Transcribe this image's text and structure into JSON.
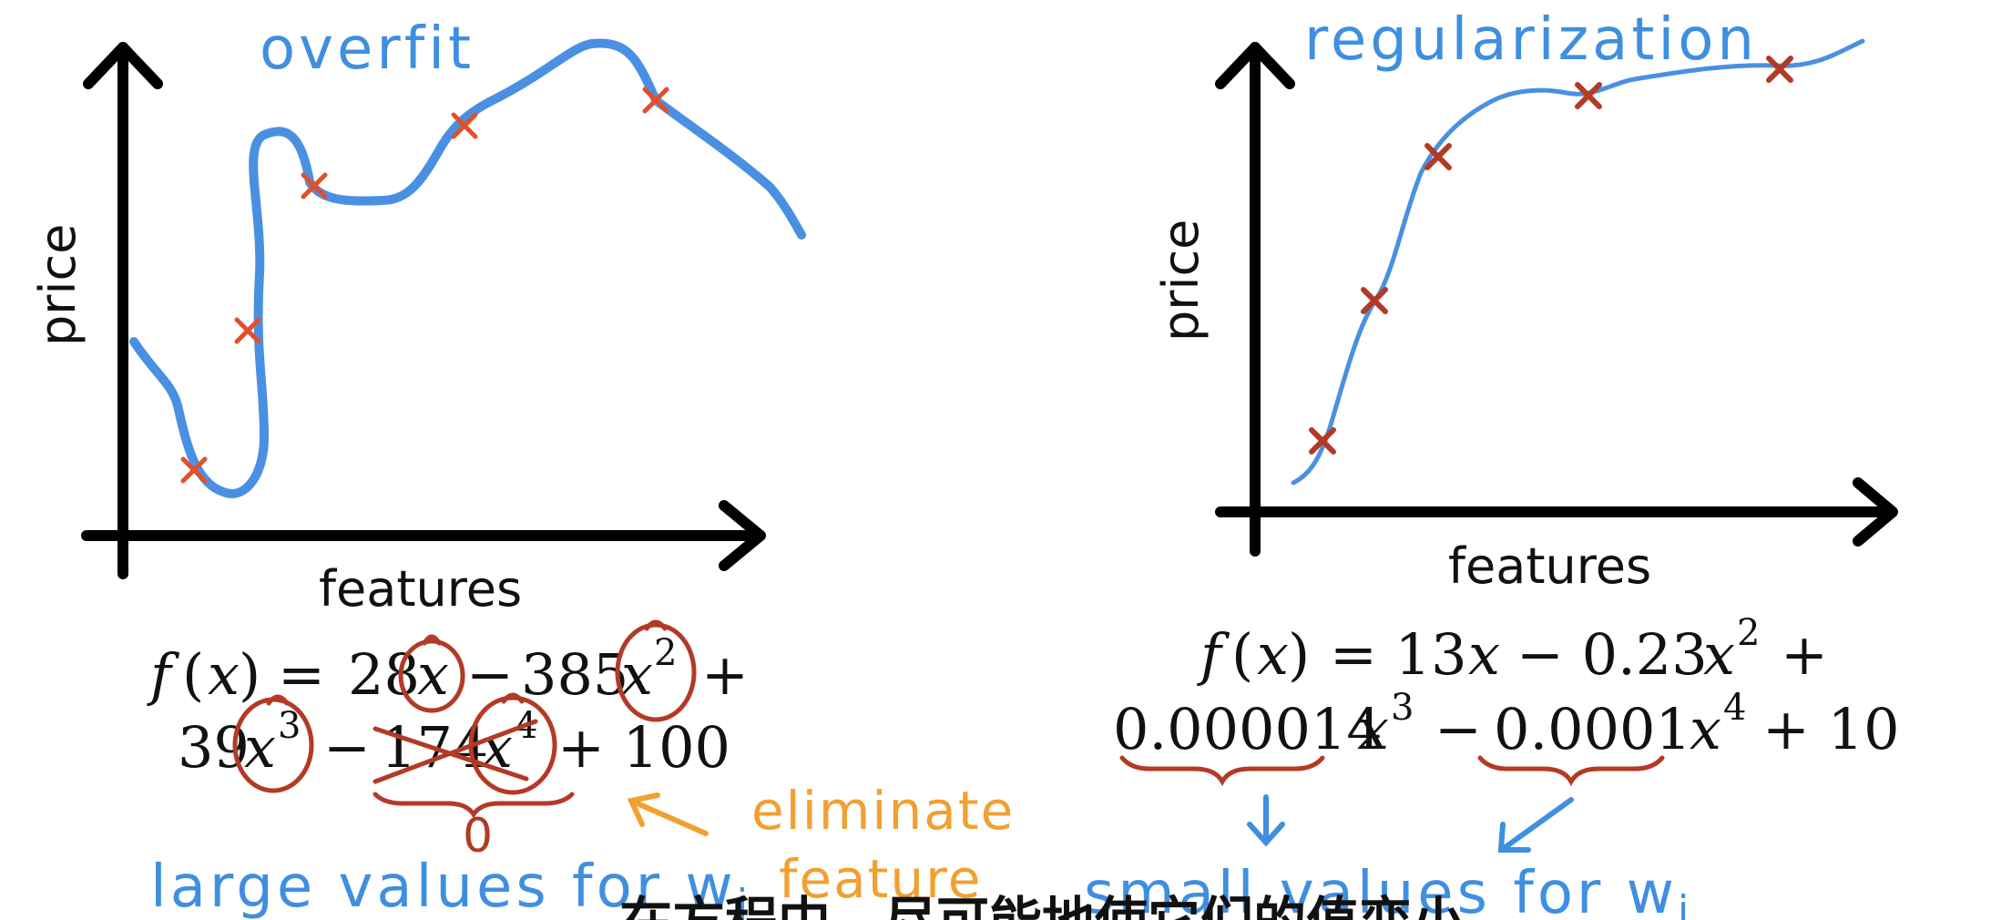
{
  "left_panel": {
    "title": "overfit",
    "x_label": "features",
    "y_label": "price",
    "equation_line1": {
      "f": "f",
      "x": "x",
      "t1": "28",
      "t2": "385",
      "t3": "+"
    },
    "equation_line2": {
      "c1": "39",
      "c2": "174",
      "tail": "+ 100"
    },
    "zero_mark": "0",
    "eliminate_note": "eliminate",
    "feature_note": "feature",
    "large_values_note": "large values for w",
    "large_values_sub": "j"
  },
  "right_panel": {
    "title": "regularization",
    "x_label": "features",
    "y_label": "price",
    "equation_line1": {
      "head": "= 13",
      "mid": "− 0.23",
      "tail": "+"
    },
    "equation_line2": {
      "c1": "0.000014",
      "mid": "− ",
      "c2": "0.0001",
      "tail": "+ 10"
    },
    "small_values_note": "small values for w",
    "small_values_sub": "j"
  },
  "subtitle": "在方程中，尽可能地使它们的值变小"
}
